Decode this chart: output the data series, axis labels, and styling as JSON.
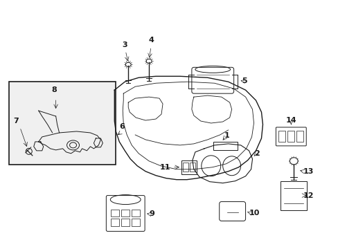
{
  "bg_color": "#ffffff",
  "line_color": "#1a1a1a",
  "fig_width": 4.89,
  "fig_height": 3.6,
  "dpi": 100,
  "font_size": 8,
  "lw": 0.7
}
